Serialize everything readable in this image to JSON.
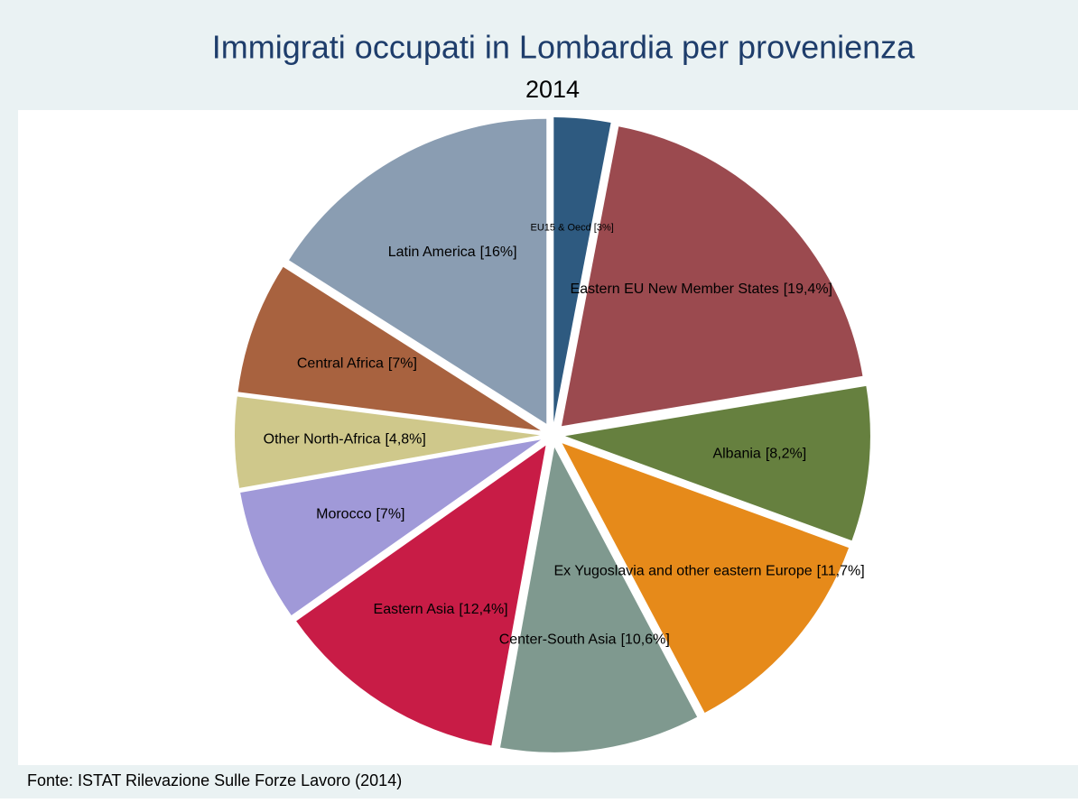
{
  "chart_data": {
    "type": "pie",
    "title": "Immigrati occupati in Lombardia per provenienza",
    "subtitle": "2014",
    "source": "Fonte: ISTAT Rilevazione Sulle Forze Lavoro (2014)",
    "categories": [
      "EU15 & Oecd",
      "Eastern EU New Member States",
      "Albania",
      "Ex Yugoslavia and other eastern Europe",
      "Center-South Asia",
      "Eastern Asia",
      "Morocco",
      "Other North-Africa",
      "Central Africa",
      "Latin America"
    ],
    "values": [
      3,
      19.4,
      8.2,
      11.7,
      10.6,
      12.4,
      7,
      4.8,
      7,
      16
    ],
    "value_labels": [
      "[3%]",
      "[19,4%]",
      "[8,2%]",
      "[11,7%]",
      "[10,6%]",
      "[12,4%]",
      "[7%]",
      "[4,8%]",
      "[7%]",
      "[16%]"
    ],
    "colors": [
      "#2e5a80",
      "#9b4a4f",
      "#66803f",
      "#e68a1a",
      "#7f998f",
      "#c81c46",
      "#a099d8",
      "#cfc88b",
      "#a8623f",
      "#8a9db2"
    ]
  }
}
